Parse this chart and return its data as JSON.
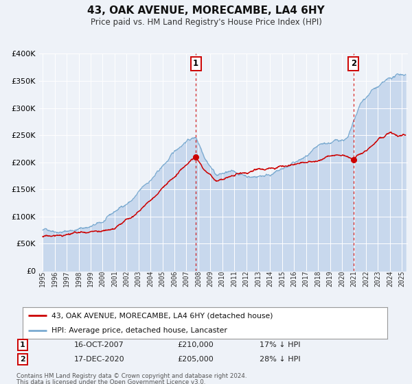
{
  "title": "43, OAK AVENUE, MORECAMBE, LA4 6HY",
  "subtitle": "Price paid vs. HM Land Registry's House Price Index (HPI)",
  "bg_color": "#eef2f8",
  "plot_bg_color": "#eef2f8",
  "red_color": "#cc0000",
  "blue_color": "#7aaad0",
  "blue_fill_color": "#c8d8ed",
  "grid_color": "#ffffff",
  "ylim": [
    0,
    400000
  ],
  "yticks": [
    0,
    50000,
    100000,
    150000,
    200000,
    250000,
    300000,
    350000,
    400000
  ],
  "ytick_labels": [
    "£0",
    "£50K",
    "£100K",
    "£150K",
    "£200K",
    "£250K",
    "£300K",
    "£350K",
    "£400K"
  ],
  "marker1_date_idx": 2007.79,
  "marker1_value": 210000,
  "marker1_label": "1",
  "marker1_date_str": "16-OCT-2007",
  "marker1_price": "£210,000",
  "marker1_hpi": "17% ↓ HPI",
  "marker2_date_idx": 2020.96,
  "marker2_value": 205000,
  "marker2_label": "2",
  "marker2_date_str": "17-DEC-2020",
  "marker2_price": "£205,000",
  "marker2_hpi": "28% ↓ HPI",
  "legend_entry1": "43, OAK AVENUE, MORECAMBE, LA4 6HY (detached house)",
  "legend_entry2": "HPI: Average price, detached house, Lancaster",
  "footer_line1": "Contains HM Land Registry data © Crown copyright and database right 2024.",
  "footer_line2": "This data is licensed under the Open Government Licence v3.0.",
  "xmin": 1994.7,
  "xmax": 2025.5,
  "hpi_knots": {
    "1995.0": 75000,
    "1997.0": 80000,
    "2000.0": 98000,
    "2002.5": 140000,
    "2004.5": 185000,
    "2007.0": 248000,
    "2007.8": 255000,
    "2008.5": 225000,
    "2009.5": 195000,
    "2010.5": 200000,
    "2011.5": 195000,
    "2012.5": 192000,
    "2013.5": 198000,
    "2015.0": 210000,
    "2016.5": 225000,
    "2018.0": 240000,
    "2019.5": 248000,
    "2020.5": 255000,
    "2021.5": 310000,
    "2022.5": 338000,
    "2023.5": 348000,
    "2024.5": 358000,
    "2025.3": 362000
  },
  "red_knots": {
    "1995.0": 63000,
    "1997.0": 65000,
    "1999.0": 67000,
    "2001.0": 72000,
    "2003.0": 110000,
    "2005.0": 155000,
    "2006.5": 185000,
    "2007.79": 210000,
    "2008.5": 185000,
    "2009.5": 162000,
    "2010.5": 168000,
    "2011.5": 172000,
    "2013.0": 180000,
    "2015.0": 190000,
    "2017.0": 198000,
    "2018.5": 205000,
    "2019.5": 213000,
    "2020.96": 205000,
    "2022.0": 220000,
    "2023.0": 240000,
    "2024.0": 253000,
    "2025.3": 250000
  }
}
